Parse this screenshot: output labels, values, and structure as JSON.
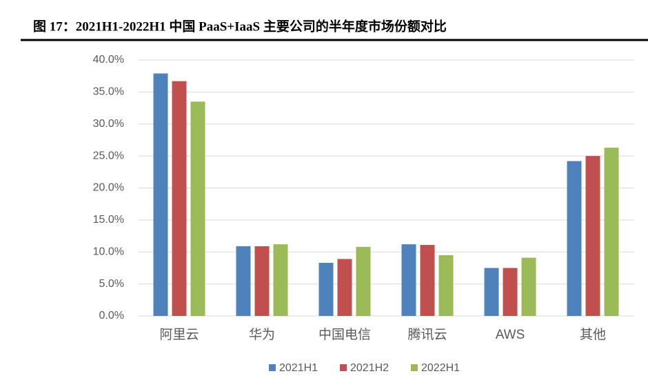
{
  "chart_data": {
    "type": "bar",
    "title": "图 17：2021H1-2022H1 中国 PaaS+IaaS 主要公司的半年度市场份额对比",
    "categories": [
      "阿里云",
      "华为",
      "中国电信",
      "腾讯云",
      "AWS",
      "其他"
    ],
    "series": [
      {
        "name": "2021H1",
        "color": "#4f81bd",
        "values": [
          37.9,
          10.9,
          8.3,
          11.2,
          7.5,
          24.2
        ]
      },
      {
        "name": "2021H2",
        "color": "#c0504d",
        "values": [
          36.7,
          10.9,
          8.9,
          11.1,
          7.5,
          25.0
        ]
      },
      {
        "name": "2022H1",
        "color": "#9bbb59",
        "values": [
          33.5,
          11.2,
          10.8,
          9.5,
          9.1,
          26.3
        ]
      }
    ],
    "ylim": [
      0,
      40
    ],
    "yticks": [
      {
        "value": 0,
        "label": "0.0%"
      },
      {
        "value": 5,
        "label": "5.0%"
      },
      {
        "value": 10,
        "label": "10.0%"
      },
      {
        "value": 15,
        "label": "15.0%"
      },
      {
        "value": 20,
        "label": "20.0%"
      },
      {
        "value": 25,
        "label": "25.0%"
      },
      {
        "value": 30,
        "label": "30.0%"
      },
      {
        "value": 35,
        "label": "35.0%"
      },
      {
        "value": 40,
        "label": "40.0%"
      }
    ],
    "grid": true,
    "legend": "bottom"
  }
}
